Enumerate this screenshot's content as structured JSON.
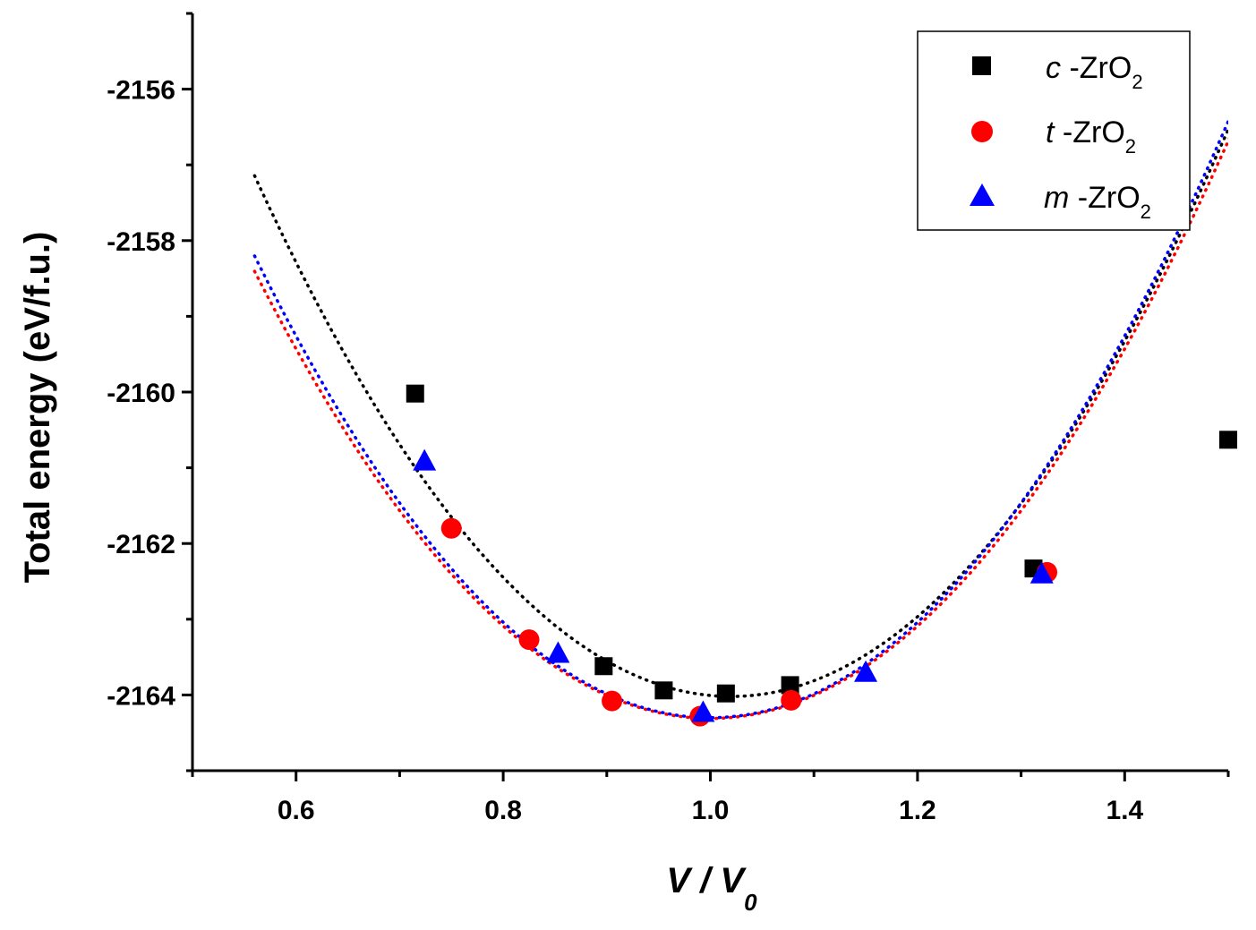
{
  "chart_data": {
    "type": "scatter",
    "title": "",
    "xlabel": {
      "main": "V / V",
      "sub": "0"
    },
    "ylabel": "Total energy (eV/f.u.)",
    "xlim": [
      0.5,
      1.5
    ],
    "ylim": [
      -2165,
      -2155
    ],
    "x_major_ticks": [
      0.6,
      0.8,
      1.0,
      1.2,
      1.4
    ],
    "x_tick_labels": [
      "0.6",
      "0.8",
      "1.0",
      "1.2",
      "1.4"
    ],
    "y_major_ticks": [
      -2156,
      -2158,
      -2160,
      -2162,
      -2164
    ],
    "y_tick_labels": [
      "-2156",
      "-2158",
      "-2160",
      "-2162",
      "-2164"
    ],
    "grid": false,
    "legend_position": "top-right",
    "series": [
      {
        "name": "c-ZrO2",
        "legend": {
          "italic": "c",
          "text": " -ZrO",
          "sub": "2"
        },
        "marker": "square",
        "color": "#000000",
        "fit": {
          "E0": -2164.02,
          "V0": 1.02,
          "curvature": 32.5
        },
        "points": [
          {
            "x": 0.715,
            "y": -2160.02
          },
          {
            "x": 0.897,
            "y": -2163.62
          },
          {
            "x": 0.955,
            "y": -2163.94
          },
          {
            "x": 1.015,
            "y": -2163.98
          },
          {
            "x": 1.077,
            "y": -2163.87
          },
          {
            "x": 1.312,
            "y": -2162.33
          },
          {
            "x": 1.5,
            "y": -2160.63
          }
        ]
      },
      {
        "name": "t-ZrO2",
        "legend": {
          "italic": "t",
          "text": " -ZrO",
          "sub": "2"
        },
        "marker": "circle",
        "color": "#ff0000",
        "fit": {
          "E0": -2164.31,
          "V0": 1.0,
          "curvature": 30.5
        },
        "points": [
          {
            "x": 0.75,
            "y": -2161.8
          },
          {
            "x": 0.825,
            "y": -2163.27
          },
          {
            "x": 0.905,
            "y": -2164.08
          },
          {
            "x": 0.99,
            "y": -2164.28
          },
          {
            "x": 1.078,
            "y": -2164.07
          },
          {
            "x": 1.325,
            "y": -2162.38
          }
        ]
      },
      {
        "name": "m-ZrO2",
        "legend": {
          "italic": "m",
          "text": " -ZrO",
          "sub": "2"
        },
        "marker": "triangle",
        "color": "#0000ff",
        "fit": {
          "E0": -2164.3,
          "V0": 1.0,
          "curvature": 31.5
        },
        "points": [
          {
            "x": 0.724,
            "y": -2160.93
          },
          {
            "x": 0.853,
            "y": -2163.47
          },
          {
            "x": 0.993,
            "y": -2164.25
          },
          {
            "x": 1.15,
            "y": -2163.72
          },
          {
            "x": 1.32,
            "y": -2162.42
          }
        ]
      }
    ]
  }
}
